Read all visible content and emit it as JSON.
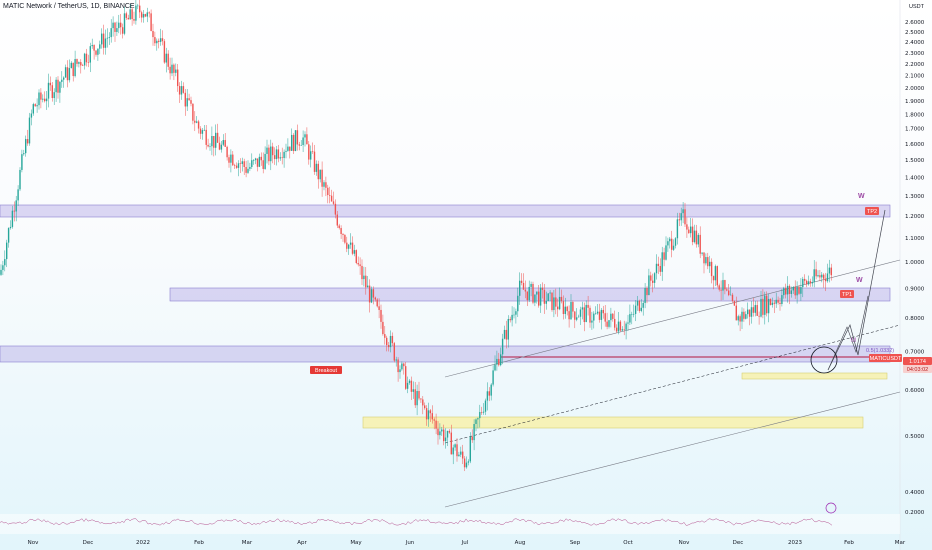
{
  "header": {
    "title": "MATIC Network / TetherUS, 1D, BINANCE"
  },
  "axis_unit": "USDT",
  "colors": {
    "up": "#26a69a",
    "down": "#ef5350",
    "zone": "#b3a8e6",
    "zone_yellow": "#f6f2b8",
    "resistance": "#b2163f",
    "label": "#e53935",
    "wave": "#9c4aa5"
  },
  "chart_data": {
    "type": "candlestick",
    "symbol": "MATICUSDT",
    "title": "MATIC Network / TetherUS, 1D, BINANCE",
    "yscale": "log",
    "ylim": [
      0.2,
      2.9
    ],
    "y_ticks": [
      "2.6000",
      "2.5000",
      "2.4000",
      "2.3000",
      "2.2000",
      "2.1000",
      "2.0000",
      "1.9000",
      "1.8000",
      "1.7000",
      "1.6000",
      "1.5000",
      "1.4000",
      "1.3000",
      "1.2000",
      "1.1000",
      "1.0000",
      "0.9000",
      "0.8000",
      "0.7000",
      "0.6000",
      "0.5000",
      "0.4000",
      "0.2000"
    ],
    "x_ticks": [
      "Nov",
      "Dec",
      "2022",
      "Feb",
      "Mar",
      "Apr",
      "May",
      "Jun",
      "Jul",
      "Aug",
      "Sep",
      "Oct",
      "Nov",
      "Dec",
      "2023",
      "Feb",
      "Mar"
    ],
    "approx_path": [
      {
        "month": "Nov",
        "value": 1.85
      },
      {
        "month": "Dec",
        "value": 2.3
      },
      {
        "month": "2022",
        "value": 2.75
      },
      {
        "month": "Feb",
        "value": 1.7
      },
      {
        "month": "Mar",
        "value": 1.45
      },
      {
        "month": "Apr",
        "value": 1.65
      },
      {
        "month": "May",
        "value": 1.0
      },
      {
        "month": "Jun",
        "value": 0.6
      },
      {
        "month": "Jul",
        "value": 0.45
      },
      {
        "month": "Aug",
        "value": 0.9
      },
      {
        "month": "Sep",
        "value": 0.82
      },
      {
        "month": "Oct",
        "value": 0.78
      },
      {
        "month": "Nov",
        "value": 1.2
      },
      {
        "month": "Dec",
        "value": 0.8
      },
      {
        "month": "2023",
        "value": 0.9
      },
      {
        "month": "Feb",
        "value": 1.0
      }
    ],
    "last_price": "1.0174",
    "countdown": "04:03:02",
    "fib_label": "0.5(1.0332)",
    "annotations": [
      "TP2",
      "TP1",
      "W",
      "W",
      "Breakout",
      "M"
    ]
  }
}
